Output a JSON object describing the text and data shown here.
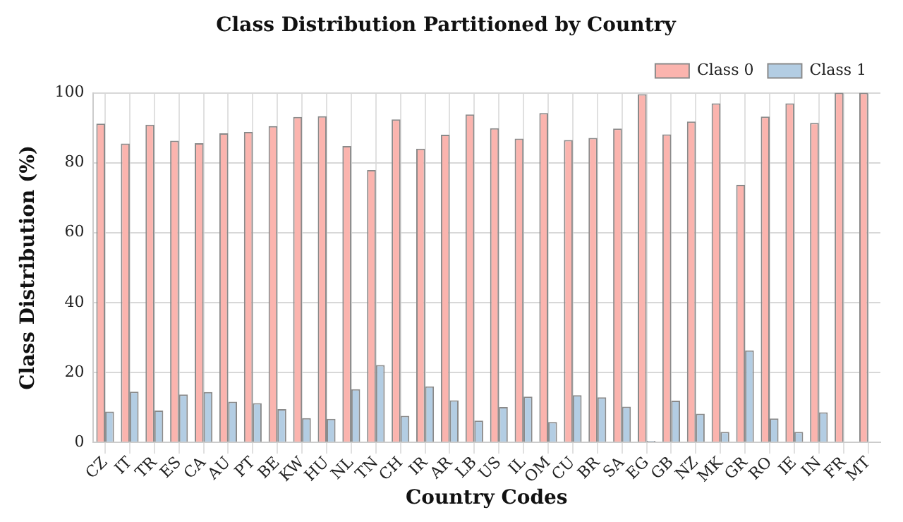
{
  "chart_data": {
    "type": "bar",
    "title": "Class Distribution Partitioned by Country",
    "xlabel": "Country Codes",
    "ylabel": "Class Distribution (%)",
    "categories": [
      "CZ",
      "IT",
      "TR",
      "ES",
      "CA",
      "AU",
      "PT",
      "BE",
      "KW",
      "HU",
      "NL",
      "TN",
      "CH",
      "IR",
      "AR",
      "LB",
      "US",
      "IL",
      "OM",
      "CU",
      "BR",
      "SA",
      "EG",
      "GB",
      "NZ",
      "MK",
      "GR",
      "RO",
      "IE",
      "IN",
      "FR",
      "MT"
    ],
    "series": [
      {
        "name": "Class 0",
        "color": "#fbb4ae",
        "values": [
          91.2,
          85.5,
          90.9,
          86.3,
          85.6,
          88.4,
          88.8,
          90.5,
          93.1,
          93.3,
          84.8,
          77.9,
          92.4,
          84.0,
          88.0,
          93.8,
          89.9,
          86.9,
          94.2,
          86.5,
          87.1,
          89.8,
          99.6,
          88.1,
          91.8,
          97.0,
          73.7,
          93.2,
          97.0,
          91.4,
          100,
          100
        ]
      },
      {
        "name": "Class 1",
        "color": "#b3cde3",
        "values": [
          8.8,
          14.5,
          9.1,
          13.7,
          14.4,
          11.6,
          11.2,
          9.5,
          6.9,
          6.7,
          15.2,
          22.1,
          7.6,
          16.0,
          12.0,
          6.2,
          10.1,
          13.1,
          5.8,
          13.5,
          12.9,
          10.2,
          0.4,
          11.9,
          8.2,
          3.0,
          26.3,
          6.8,
          3.0,
          8.6,
          0,
          0
        ]
      }
    ],
    "ylim": [
      0,
      100
    ],
    "yticks": [
      0,
      20,
      40,
      60,
      80,
      100
    ],
    "grid": true,
    "legend": "top right"
  }
}
